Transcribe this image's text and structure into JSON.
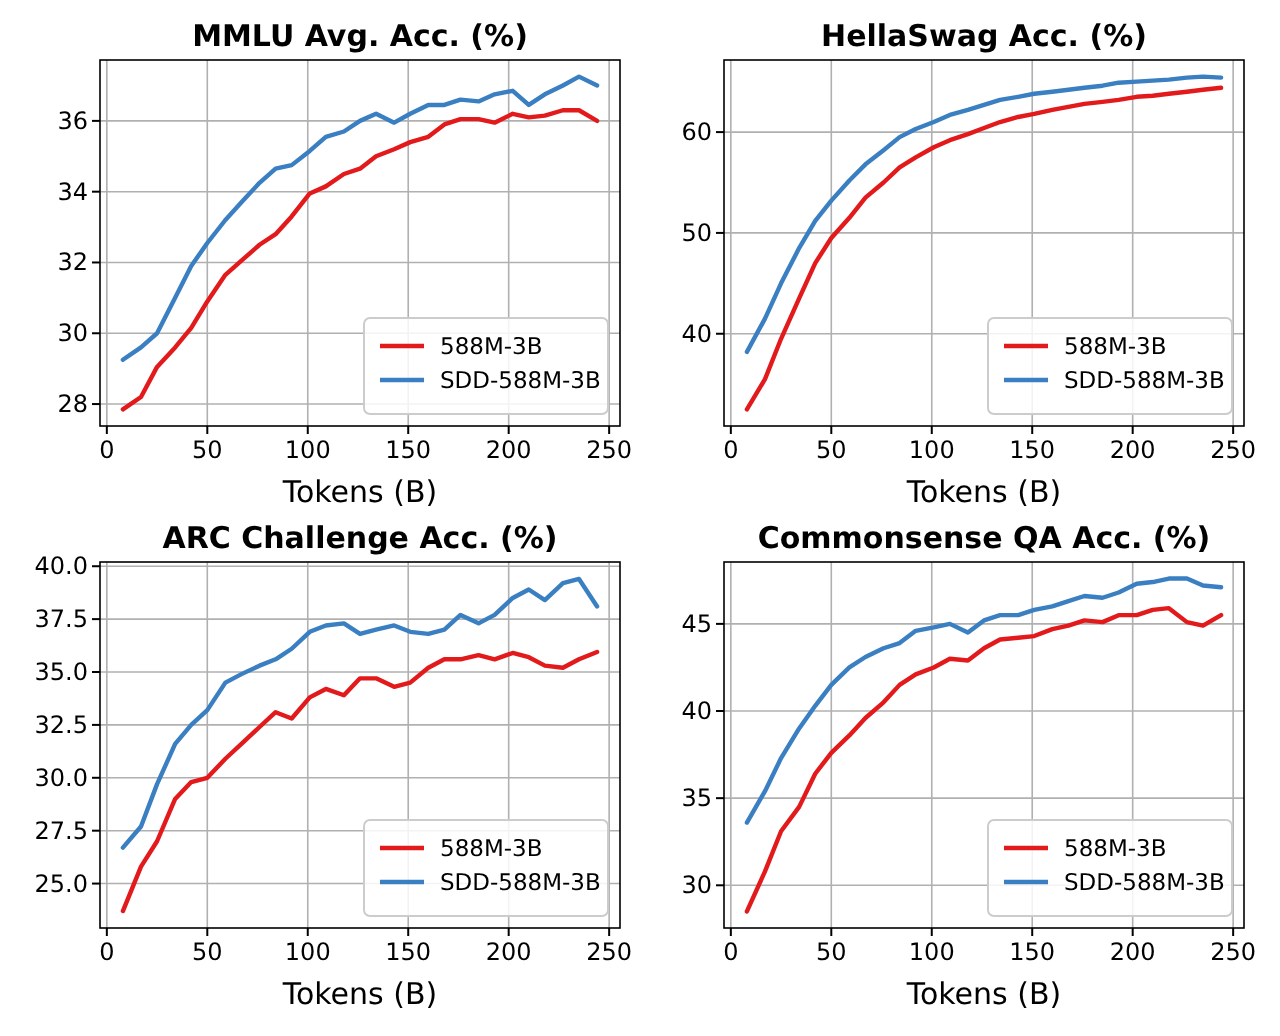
{
  "chart_data": [
    {
      "type": "line",
      "title": "MMLU Avg. Acc. (%)",
      "xlabel": "Tokens (B)",
      "x": [
        8,
        17,
        25,
        34,
        42,
        50,
        59,
        67,
        76,
        84,
        92,
        101,
        109,
        118,
        126,
        134,
        143,
        151,
        160,
        168,
        176,
        185,
        193,
        202,
        210,
        218,
        227,
        235,
        244
      ],
      "xlim": [
        -3.4,
        255.4
      ],
      "xticks": [
        0,
        50,
        100,
        150,
        200,
        250
      ],
      "ylim": [
        27.38,
        37.72
      ],
      "yticks": [
        28,
        30,
        32,
        34,
        36
      ],
      "grid": true,
      "legend": "bottom right",
      "line_style": "solid",
      "series": [
        {
          "name": "588M-3B",
          "color": "#e31a1c",
          "values": [
            27.85,
            28.2,
            29.05,
            29.6,
            30.15,
            30.9,
            31.65,
            32.05,
            32.5,
            32.8,
            33.3,
            33.95,
            34.15,
            34.5,
            34.65,
            35.0,
            35.2,
            35.4,
            35.55,
            35.9,
            36.05,
            36.05,
            35.95,
            36.2,
            36.1,
            36.15,
            36.3,
            36.3,
            36.0
          ]
        },
        {
          "name": "SDD-588M-3B",
          "color": "#3a7fc1",
          "values": [
            29.25,
            29.6,
            30.0,
            31.0,
            31.9,
            32.55,
            33.2,
            33.7,
            34.25,
            34.65,
            34.75,
            35.15,
            35.55,
            35.7,
            36.0,
            36.2,
            35.95,
            36.2,
            36.45,
            36.45,
            36.6,
            36.55,
            36.75,
            36.85,
            36.45,
            36.75,
            37.0,
            37.25,
            37.0
          ]
        }
      ]
    },
    {
      "type": "line",
      "title": "HellaSwag Acc. (%)",
      "xlabel": "Tokens (B)",
      "x": [
        8,
        17,
        25,
        34,
        42,
        50,
        59,
        67,
        76,
        84,
        92,
        101,
        109,
        118,
        126,
        134,
        143,
        151,
        160,
        168,
        176,
        185,
        193,
        202,
        210,
        218,
        227,
        235,
        244
      ],
      "xlim": [
        -3.4,
        255.4
      ],
      "xticks": [
        0,
        50,
        100,
        150,
        200,
        250
      ],
      "ylim": [
        30.85,
        67.15
      ],
      "yticks": [
        40,
        50,
        60
      ],
      "grid": true,
      "legend": "bottom right",
      "line_style": "solid",
      "series": [
        {
          "name": "588M-3B",
          "color": "#e31a1c",
          "values": [
            32.5,
            35.5,
            39.5,
            43.5,
            47,
            49.5,
            51.5,
            53.5,
            55,
            56.5,
            57.5,
            58.5,
            59.2,
            59.8,
            60.4,
            61,
            61.5,
            61.8,
            62.2,
            62.5,
            62.8,
            63,
            63.2,
            63.5,
            63.6,
            63.8,
            64,
            64.2,
            64.4
          ]
        },
        {
          "name": "SDD-588M-3B",
          "color": "#3a7fc1",
          "values": [
            38.2,
            41.5,
            45,
            48.5,
            51.2,
            53.2,
            55.2,
            56.8,
            58.2,
            59.5,
            60.3,
            61,
            61.7,
            62.2,
            62.7,
            63.2,
            63.5,
            63.8,
            64,
            64.2,
            64.4,
            64.6,
            64.9,
            65,
            65.1,
            65.2,
            65.4,
            65.5,
            65.4
          ]
        }
      ]
    },
    {
      "type": "line",
      "title": "ARC Challenge Acc. (%)",
      "xlabel": "Tokens (B)",
      "x": [
        8,
        17,
        25,
        34,
        42,
        50,
        59,
        67,
        76,
        84,
        92,
        101,
        109,
        118,
        126,
        134,
        143,
        151,
        160,
        168,
        176,
        185,
        193,
        202,
        210,
        218,
        227,
        235,
        244
      ],
      "xlim": [
        -3.4,
        255.4
      ],
      "xticks": [
        0,
        50,
        100,
        150,
        200,
        250
      ],
      "ylim": [
        22.9,
        40.2
      ],
      "yticks": [
        {
          "value": 25,
          "label": "25.0"
        },
        {
          "value": 27.5,
          "label": "27.5"
        },
        {
          "value": 30,
          "label": "30.0"
        },
        {
          "value": 32.5,
          "label": "32.5"
        },
        {
          "value": 35,
          "label": "35.0"
        },
        {
          "value": 37.5,
          "label": "37.5"
        },
        {
          "value": 40,
          "label": "40.0"
        }
      ],
      "grid": true,
      "legend": "bottom right",
      "line_style": "solid",
      "series": [
        {
          "name": "588M-3B",
          "color": "#e31a1c",
          "values": [
            23.7,
            25.8,
            27,
            29,
            29.8,
            30,
            30.9,
            31.6,
            32.4,
            33.1,
            32.8,
            33.8,
            34.2,
            33.9,
            34.7,
            34.7,
            34.3,
            34.5,
            35.2,
            35.6,
            35.6,
            35.8,
            35.6,
            35.9,
            35.7,
            35.3,
            35.2,
            35.6,
            35.95
          ]
        },
        {
          "name": "SDD-588M-3B",
          "color": "#3a7fc1",
          "values": [
            26.7,
            27.7,
            29.7,
            31.6,
            32.5,
            33.2,
            34.5,
            34.9,
            35.3,
            35.6,
            36.1,
            36.9,
            37.2,
            37.3,
            36.8,
            37,
            37.2,
            36.9,
            36.8,
            37,
            37.7,
            37.3,
            37.7,
            38.5,
            38.9,
            38.4,
            39.2,
            39.4,
            38.1
          ]
        }
      ]
    },
    {
      "type": "line",
      "title": "Commonsense QA Acc. (%)",
      "xlabel": "Tokens (B)",
      "x": [
        8,
        17,
        25,
        34,
        42,
        50,
        59,
        67,
        76,
        84,
        92,
        101,
        109,
        118,
        126,
        134,
        143,
        151,
        160,
        168,
        176,
        185,
        193,
        202,
        210,
        218,
        227,
        235,
        244
      ],
      "xlim": [
        -3.4,
        255.4
      ],
      "xticks": [
        0,
        50,
        100,
        150,
        200,
        250
      ],
      "ylim": [
        27.55,
        48.55
      ],
      "yticks": [
        30,
        35,
        40,
        45
      ],
      "grid": true,
      "legend": "bottom right",
      "line_style": "solid",
      "series": [
        {
          "name": "588M-3B",
          "color": "#e31a1c",
          "values": [
            28.5,
            30.8,
            33.1,
            34.5,
            36.4,
            37.6,
            38.6,
            39.6,
            40.5,
            41.5,
            42.1,
            42.5,
            43,
            42.9,
            43.6,
            44.1,
            44.2,
            44.3,
            44.7,
            44.9,
            45.2,
            45.1,
            45.5,
            45.5,
            45.8,
            45.9,
            45.1,
            44.9,
            45.5
          ]
        },
        {
          "name": "SDD-588M-3B",
          "color": "#3a7fc1",
          "values": [
            33.6,
            35.4,
            37.3,
            39,
            40.3,
            41.5,
            42.5,
            43.1,
            43.6,
            43.9,
            44.6,
            44.8,
            45,
            44.5,
            45.2,
            45.5,
            45.5,
            45.8,
            46,
            46.3,
            46.6,
            46.5,
            46.8,
            47.3,
            47.4,
            47.6,
            47.6,
            47.2,
            47.1
          ]
        }
      ]
    }
  ]
}
